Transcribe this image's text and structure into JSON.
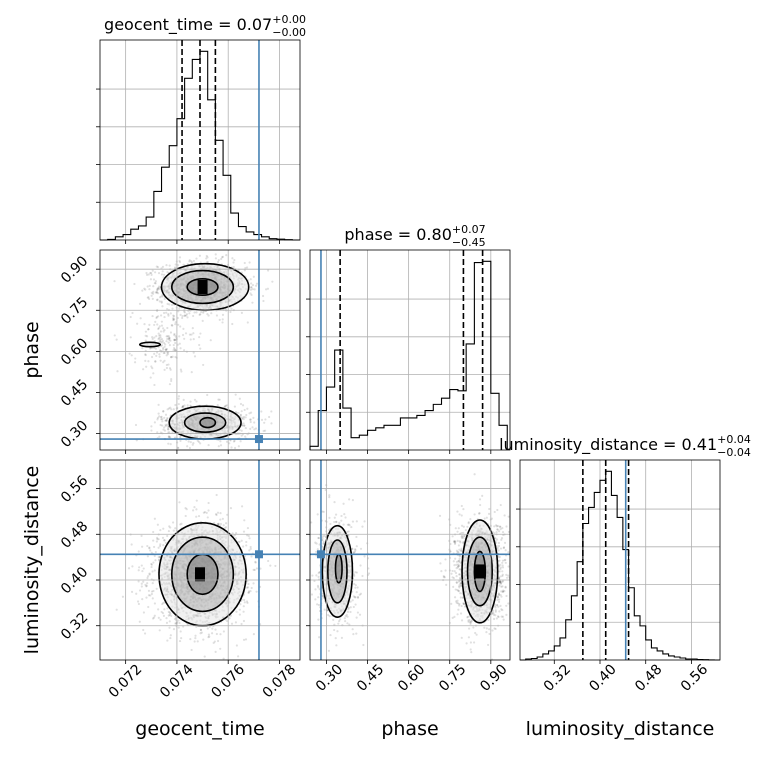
{
  "chart_data": {
    "type": "scatter",
    "kind": "corner-plot",
    "parameters": [
      "geocent_time",
      "phase",
      "luminosity_distance"
    ],
    "titles": [
      {
        "name": "geocent_time",
        "median": "0.07",
        "plus": "+0.00",
        "minus": "−0.00"
      },
      {
        "name": "phase",
        "median": "0.80",
        "plus": "+0.07",
        "minus": "−0.45"
      },
      {
        "name": "luminosity_distance",
        "median": "0.41",
        "plus": "+0.04",
        "minus": "−0.04"
      }
    ],
    "truths": {
      "geocent_time": 0.0772,
      "phase": 0.28,
      "luminosity_distance": 0.445
    },
    "truth_color": "#4682b4",
    "ranges": {
      "geocent_time": [
        0.071,
        0.0788
      ],
      "phase": [
        0.24,
        0.97
      ],
      "luminosity_distance": [
        0.26,
        0.61
      ]
    },
    "ticks": {
      "geocent_time": [
        "0.072",
        "0.074",
        "0.076",
        "0.078"
      ],
      "phase": [
        "0.30",
        "0.45",
        "0.60",
        "0.75",
        "0.90"
      ],
      "luminosity_distance": [
        "0.32",
        "0.40",
        "0.48",
        "0.56"
      ]
    },
    "quantiles": {
      "geocent_time": [
        0.0742,
        0.0749,
        0.0755
      ],
      "phase": [
        0.35,
        0.8,
        0.87
      ],
      "luminosity_distance": [
        0.37,
        0.41,
        0.45
      ]
    },
    "histograms": {
      "geocent_time": {
        "edges": [
          0.071,
          0.0713,
          0.0716,
          0.0719,
          0.0722,
          0.0725,
          0.0728,
          0.0731,
          0.0734,
          0.0737,
          0.074,
          0.0743,
          0.0746,
          0.0749,
          0.0752,
          0.0755,
          0.0758,
          0.0761,
          0.0764,
          0.0767,
          0.077,
          0.0773,
          0.0776,
          0.0779,
          0.0782,
          0.0785,
          0.0788
        ],
        "counts": [
          0,
          0.2,
          1.2,
          2,
          4,
          5.2,
          8.5,
          18,
          27,
          35,
          45,
          60,
          67,
          70,
          52,
          37,
          24,
          10,
          5,
          3,
          2,
          1.2,
          0.5,
          0.3,
          0.1,
          0
        ]
      },
      "phase": {
        "edges": [
          0.24,
          0.27,
          0.3,
          0.33,
          0.36,
          0.39,
          0.42,
          0.45,
          0.48,
          0.51,
          0.54,
          0.57,
          0.6,
          0.63,
          0.66,
          0.69,
          0.72,
          0.75,
          0.78,
          0.81,
          0.84,
          0.87,
          0.9,
          0.93,
          0.96
        ],
        "counts": [
          3,
          32,
          51,
          81,
          34,
          10,
          12,
          16,
          18,
          20,
          20,
          26,
          26,
          28,
          32,
          37,
          42,
          49,
          48,
          86,
          152,
          153,
          46,
          20
        ]
      },
      "luminosity_distance": {
        "edges": [
          0.26,
          0.27,
          0.28,
          0.29,
          0.3,
          0.31,
          0.32,
          0.33,
          0.34,
          0.35,
          0.36,
          0.37,
          0.38,
          0.39,
          0.4,
          0.41,
          0.42,
          0.43,
          0.44,
          0.45,
          0.46,
          0.47,
          0.48,
          0.49,
          0.5,
          0.51,
          0.52,
          0.53,
          0.54,
          0.55,
          0.56,
          0.57,
          0.58,
          0.59,
          0.6,
          0.61
        ],
        "counts": [
          0,
          1,
          1.5,
          3,
          6,
          9,
          14,
          22,
          40,
          64,
          98,
          136,
          152,
          167,
          179,
          188,
          164,
          142,
          110,
          72,
          44,
          34,
          20,
          12,
          9,
          6,
          4,
          3,
          2,
          1,
          1,
          0.5,
          0.3,
          0.1,
          0
        ]
      }
    },
    "density_2d": [
      {
        "x": "geocent_time",
        "y": "phase",
        "clusters": [
          {
            "cx": 0.075,
            "cy": 0.835,
            "sx": 0.00085,
            "sy": 0.045,
            "n": 1500
          },
          {
            "cx": 0.0751,
            "cy": 0.34,
            "sx": 0.0009,
            "sy": 0.035,
            "n": 800
          },
          {
            "cx": 0.0735,
            "cy": 0.63,
            "sx": 0.0006,
            "sy": 0.06,
            "n": 200
          }
        ]
      },
      {
        "x": "geocent_time",
        "y": "luminosity_distance",
        "clusters": [
          {
            "cx": 0.0749,
            "cy": 0.41,
            "sx": 0.0009,
            "sy": 0.042,
            "n": 2200
          }
        ]
      },
      {
        "x": "phase",
        "y": "luminosity_distance",
        "clusters": [
          {
            "cx": 0.86,
            "cy": 0.415,
            "sx": 0.045,
            "sy": 0.045,
            "n": 1500
          },
          {
            "cx": 0.34,
            "cy": 0.415,
            "sx": 0.035,
            "sy": 0.045,
            "n": 800
          }
        ]
      }
    ],
    "contours": [
      {
        "x": "geocent_time",
        "y": "phase",
        "levels": [
          [
            {
              "cx": 0.0751,
              "cy": 0.835,
              "rx": 0.0017,
              "ry": 0.085
            },
            {
              "cx": 0.0751,
              "cy": 0.34,
              "rx": 0.0014,
              "ry": 0.06
            },
            {
              "cx": 0.07295,
              "cy": 0.625,
              "rx": 0.0004,
              "ry": 0.008
            }
          ],
          [
            {
              "cx": 0.075,
              "cy": 0.835,
              "rx": 0.0012,
              "ry": 0.06
            },
            {
              "cx": 0.0751,
              "cy": 0.34,
              "rx": 0.0008,
              "ry": 0.035
            }
          ],
          [
            {
              "cx": 0.075,
              "cy": 0.835,
              "rx": 0.0006,
              "ry": 0.03
            },
            {
              "cx": 0.0752,
              "cy": 0.34,
              "rx": 0.0003,
              "ry": 0.018
            }
          ]
        ]
      },
      {
        "x": "geocent_time",
        "y": "luminosity_distance",
        "levels": [
          [
            {
              "cx": 0.075,
              "cy": 0.41,
              "rx": 0.0017,
              "ry": 0.09
            }
          ],
          [
            {
              "cx": 0.075,
              "cy": 0.41,
              "rx": 0.0012,
              "ry": 0.065
            }
          ],
          [
            {
              "cx": 0.075,
              "cy": 0.41,
              "rx": 0.0006,
              "ry": 0.035
            }
          ]
        ]
      },
      {
        "x": "phase",
        "y": "luminosity_distance",
        "levels": [
          [
            {
              "cx": 0.86,
              "cy": 0.415,
              "rx": 0.065,
              "ry": 0.09
            },
            {
              "cx": 0.34,
              "cy": 0.415,
              "rx": 0.055,
              "ry": 0.08
            }
          ],
          [
            {
              "cx": 0.86,
              "cy": 0.415,
              "rx": 0.045,
              "ry": 0.06
            },
            {
              "cx": 0.34,
              "cy": 0.415,
              "rx": 0.035,
              "ry": 0.055
            }
          ],
          [
            {
              "cx": 0.86,
              "cy": 0.415,
              "rx": 0.02,
              "ry": 0.035
            },
            {
              "cx": 0.345,
              "cy": 0.42,
              "rx": 0.012,
              "ry": 0.025
            }
          ]
        ]
      }
    ],
    "grid": true,
    "legend": "none"
  }
}
